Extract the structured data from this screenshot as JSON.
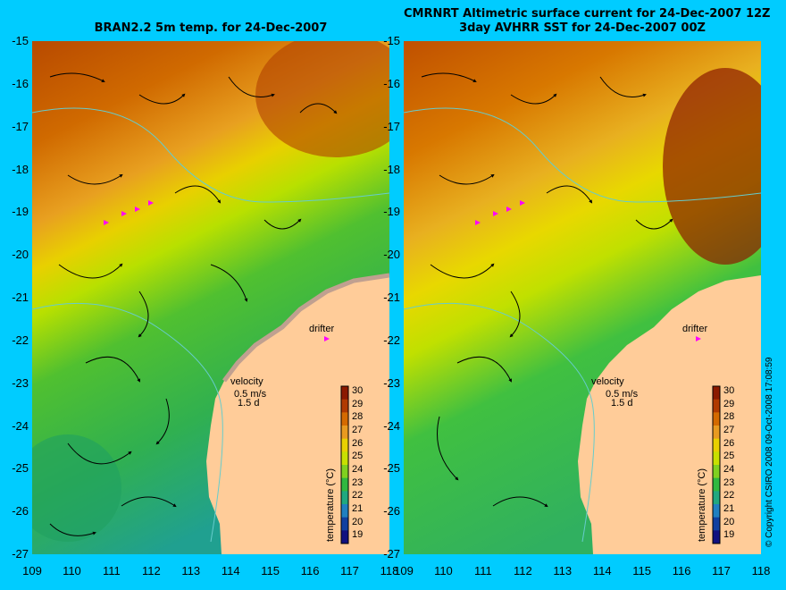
{
  "titles": {
    "left": "BRAN2.2 5m temp. for 24-Dec-2007",
    "right_line1": "CMRNRT Altimetric surface current for 24-Dec-2007 12Z",
    "right_line2": "3day AVHRR SST for 24-Dec-2007 00Z"
  },
  "axes": {
    "lat_ticks": [
      "-15",
      "-16",
      "-17",
      "-18",
      "-19",
      "-20",
      "-21",
      "-22",
      "-23",
      "-24",
      "-25",
      "-26",
      "-27"
    ],
    "lon_ticks": [
      "109",
      "110",
      "111",
      "112",
      "113",
      "114",
      "115",
      "116",
      "117",
      "118"
    ]
  },
  "annotations": {
    "drifter": "drifter",
    "velocity": "velocity",
    "velocity_scale": "0.5 m/s",
    "velocity_time": "1.5 d"
  },
  "colorbar": {
    "title": "temperature (°C)",
    "ticks": [
      "30",
      "29",
      "28",
      "27",
      "26",
      "25",
      "24",
      "23",
      "22",
      "21",
      "20",
      "19"
    ],
    "colors": [
      "#8b1a00",
      "#b03a00",
      "#d46a00",
      "#e89a20",
      "#e8d000",
      "#c8e000",
      "#80d020",
      "#30b840",
      "#20a880",
      "#2080c0",
      "#1040a0",
      "#101080"
    ]
  },
  "copyright": "© Copyright CSIRO 2008   09-Oct-2008 17:08:59",
  "colors": {
    "background": "#00ccff",
    "land": "#ffcc99",
    "coastline": "#66cccc",
    "drifter_marker": "#ff00ff"
  }
}
